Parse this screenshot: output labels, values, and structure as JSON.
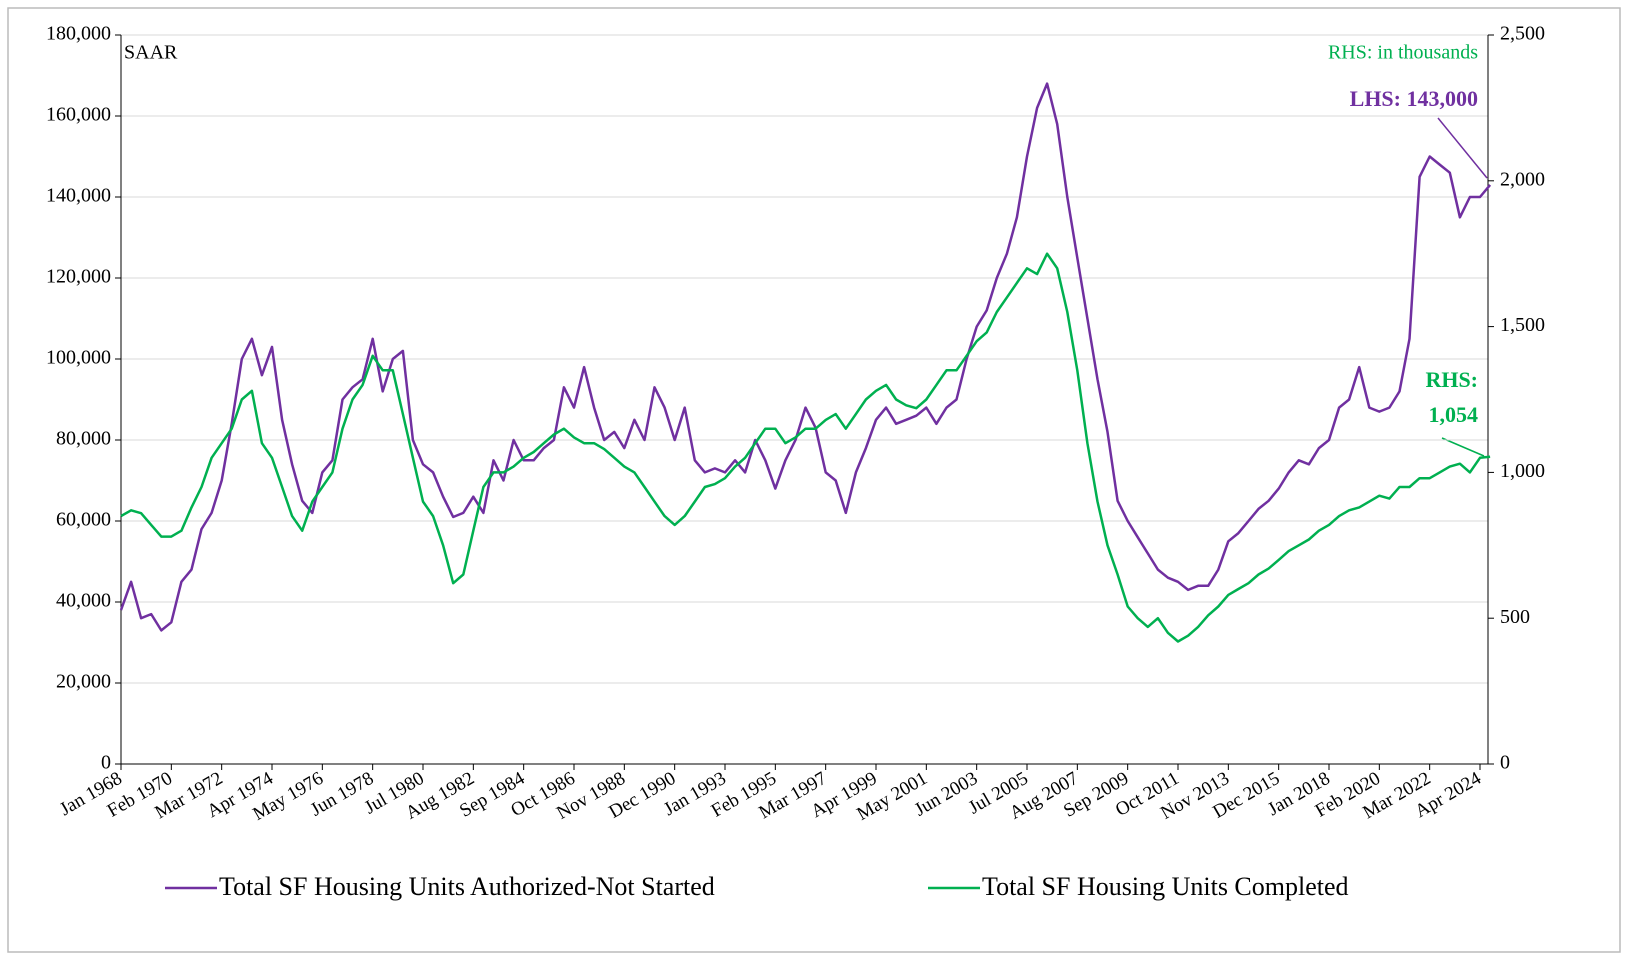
{
  "chart_data": {
    "type": "line",
    "x": [
      "Jan 1968",
      "Jun 1968",
      "Nov 1968",
      "Apr 1969",
      "Sep 1969",
      "Feb 1970",
      "Jul 1970",
      "Dec 1970",
      "May 1971",
      "Oct 1971",
      "Mar 1972",
      "Aug 1972",
      "Jan 1973",
      "Jun 1973",
      "Nov 1973",
      "Apr 1974",
      "Sep 1974",
      "Feb 1975",
      "Jul 1975",
      "Dec 1975",
      "May 1976",
      "Oct 1976",
      "Mar 1977",
      "Aug 1977",
      "Jan 1978",
      "Jun 1978",
      "Nov 1978",
      "Apr 1979",
      "Sep 1979",
      "Feb 1980",
      "Jul 1980",
      "Dec 1980",
      "May 1981",
      "Oct 1981",
      "Mar 1982",
      "Aug 1982",
      "Jan 1983",
      "Jun 1983",
      "Nov 1983",
      "Apr 1984",
      "Sep 1984",
      "Feb 1985",
      "Jul 1985",
      "Dec 1985",
      "May 1986",
      "Oct 1986",
      "Mar 1987",
      "Aug 1987",
      "Jan 1988",
      "Jun 1988",
      "Nov 1988",
      "Apr 1989",
      "Sep 1989",
      "Feb 1990",
      "Jul 1990",
      "Dec 1990",
      "May 1991",
      "Oct 1991",
      "Mar 1992",
      "Aug 1992",
      "Jan 1993",
      "Jun 1993",
      "Nov 1993",
      "Apr 1994",
      "Sep 1994",
      "Feb 1995",
      "Jul 1995",
      "Dec 1995",
      "May 1996",
      "Oct 1996",
      "Mar 1997",
      "Aug 1997",
      "Jan 1998",
      "Jun 1998",
      "Nov 1998",
      "Apr 1999",
      "Sep 1999",
      "Feb 2000",
      "Jul 2000",
      "Dec 2000",
      "May 2001",
      "Oct 2001",
      "Mar 2002",
      "Aug 2002",
      "Jan 2003",
      "Jun 2003",
      "Nov 2003",
      "Apr 2004",
      "Sep 2004",
      "Feb 2005",
      "Jul 2005",
      "Dec 2005",
      "May 2006",
      "Oct 2006",
      "Mar 2007",
      "Aug 2007",
      "Jan 2008",
      "Jun 2008",
      "Nov 2008",
      "Apr 2009",
      "Sep 2009",
      "Feb 2010",
      "Jul 2010",
      "Dec 2010",
      "May 2011",
      "Oct 2011",
      "Mar 2012",
      "Aug 2012",
      "Jan 2013",
      "Jun 2013",
      "Nov 2013",
      "Apr 2014",
      "Sep 2014",
      "Feb 2015",
      "Jul 2015",
      "Dec 2015",
      "May 2016",
      "Oct 2016",
      "Mar 2017",
      "Aug 2017",
      "Jan 2018",
      "Jun 2018",
      "Nov 2018",
      "Apr 2019",
      "Sep 2019",
      "Feb 2020",
      "Jul 2020",
      "Dec 2020",
      "May 2021",
      "Oct 2021",
      "Mar 2022",
      "Aug 2022",
      "Jan 2023",
      "Jun 2023",
      "Nov 2023",
      "Apr 2024",
      "Sep 2024"
    ],
    "xticks": [
      "Jan 1968",
      "Feb 1970",
      "Mar 1972",
      "Apr 1974",
      "May 1976",
      "Jun 1978",
      "Jul 1980",
      "Aug 1982",
      "Sep 1984",
      "Oct 1986",
      "Nov 1988",
      "Dec 1990",
      "Jan 1993",
      "Feb 1995",
      "Mar 1997",
      "Apr 1999",
      "May 2001",
      "Jun 2003",
      "Jul 2005",
      "Aug 2007",
      "Sep 2009",
      "Oct 2011",
      "Nov 2013",
      "Dec 2015",
      "Jan 2018",
      "Feb 2020",
      "Mar 2022",
      "Apr 2024"
    ],
    "series": [
      {
        "name": "Total SF Housing Units Authorized-Not Started",
        "color": "#7030a0",
        "axis": "y",
        "values": [
          38000,
          45000,
          36000,
          37000,
          33000,
          35000,
          45000,
          48000,
          58000,
          62000,
          70000,
          84000,
          100000,
          105000,
          96000,
          103000,
          85000,
          74000,
          65000,
          62000,
          72000,
          75000,
          90000,
          93000,
          95000,
          105000,
          92000,
          100000,
          102000,
          80000,
          74000,
          72000,
          66000,
          61000,
          62000,
          66000,
          62000,
          75000,
          70000,
          80000,
          75000,
          75000,
          78000,
          80000,
          93000,
          88000,
          98000,
          88000,
          80000,
          82000,
          78000,
          85000,
          80000,
          93000,
          88000,
          80000,
          88000,
          75000,
          72000,
          73000,
          72000,
          75000,
          72000,
          80000,
          75000,
          68000,
          75000,
          80000,
          88000,
          83000,
          72000,
          70000,
          62000,
          72000,
          78000,
          85000,
          88000,
          84000,
          85000,
          86000,
          88000,
          84000,
          88000,
          90000,
          100000,
          108000,
          112000,
          120000,
          126000,
          135000,
          150000,
          162000,
          168000,
          158000,
          140000,
          125000,
          110000,
          95000,
          82000,
          65000,
          60000,
          56000,
          52000,
          48000,
          46000,
          45000,
          43000,
          44000,
          44000,
          48000,
          55000,
          57000,
          60000,
          63000,
          65000,
          68000,
          72000,
          75000,
          74000,
          78000,
          80000,
          88000,
          90000,
          98000,
          88000,
          87000,
          88000,
          92000,
          105000,
          145000,
          150000,
          148000,
          146000,
          135000,
          140000,
          140000,
          143000
        ]
      },
      {
        "name": "Total SF Housing Units Completed",
        "color": "#00b050",
        "axis": "y2",
        "values": [
          850,
          870,
          860,
          820,
          780,
          780,
          800,
          880,
          950,
          1050,
          1100,
          1150,
          1250,
          1280,
          1100,
          1050,
          950,
          850,
          800,
          900,
          950,
          1000,
          1150,
          1250,
          1300,
          1400,
          1350,
          1350,
          1200,
          1050,
          900,
          850,
          750,
          620,
          650,
          800,
          950,
          1000,
          1000,
          1020,
          1050,
          1070,
          1100,
          1130,
          1150,
          1120,
          1100,
          1100,
          1080,
          1050,
          1020,
          1000,
          950,
          900,
          850,
          820,
          850,
          900,
          950,
          960,
          980,
          1020,
          1050,
          1100,
          1150,
          1150,
          1100,
          1120,
          1150,
          1150,
          1180,
          1200,
          1150,
          1200,
          1250,
          1280,
          1300,
          1250,
          1230,
          1220,
          1250,
          1300,
          1350,
          1350,
          1400,
          1450,
          1480,
          1550,
          1600,
          1650,
          1700,
          1680,
          1750,
          1700,
          1550,
          1350,
          1100,
          900,
          750,
          650,
          540,
          500,
          470,
          500,
          450,
          420,
          440,
          470,
          510,
          540,
          580,
          600,
          620,
          650,
          670,
          700,
          730,
          750,
          770,
          800,
          820,
          850,
          870,
          880,
          900,
          920,
          910,
          950,
          950,
          980,
          980,
          1000,
          1020,
          1030,
          1000,
          1050,
          1054
        ]
      }
    ],
    "ylim": [
      0,
      180000
    ],
    "yticks": [
      0,
      {
        "value": 20000,
        "label": "20,000"
      },
      {
        "value": 40000,
        "label": "40,000"
      },
      {
        "value": 60000,
        "label": "60,000"
      },
      {
        "value": 80000,
        "label": "80,000"
      },
      {
        "value": 100000,
        "label": "100,000"
      },
      {
        "value": 120000,
        "label": "120,000"
      },
      {
        "value": 140000,
        "label": "140,000"
      },
      {
        "value": 160000,
        "label": "160,000"
      },
      {
        "value": 180000,
        "label": "180,000"
      }
    ],
    "y2lim": [
      0,
      2500
    ],
    "y2ticks": [
      0,
      500,
      {
        "value": 1000,
        "label": "1,000"
      },
      {
        "value": 1500,
        "label": "1,500"
      },
      {
        "value": 2000,
        "label": "2,000"
      },
      {
        "value": 2500,
        "label": "2,500"
      }
    ],
    "grid": true,
    "annotations": [
      {
        "text": "SAAR"
      },
      {
        "text": "RHS: in thousands"
      },
      {
        "text": "LHS: 143,000"
      },
      {
        "lines": [
          "RHS:",
          "1,054"
        ]
      }
    ]
  }
}
